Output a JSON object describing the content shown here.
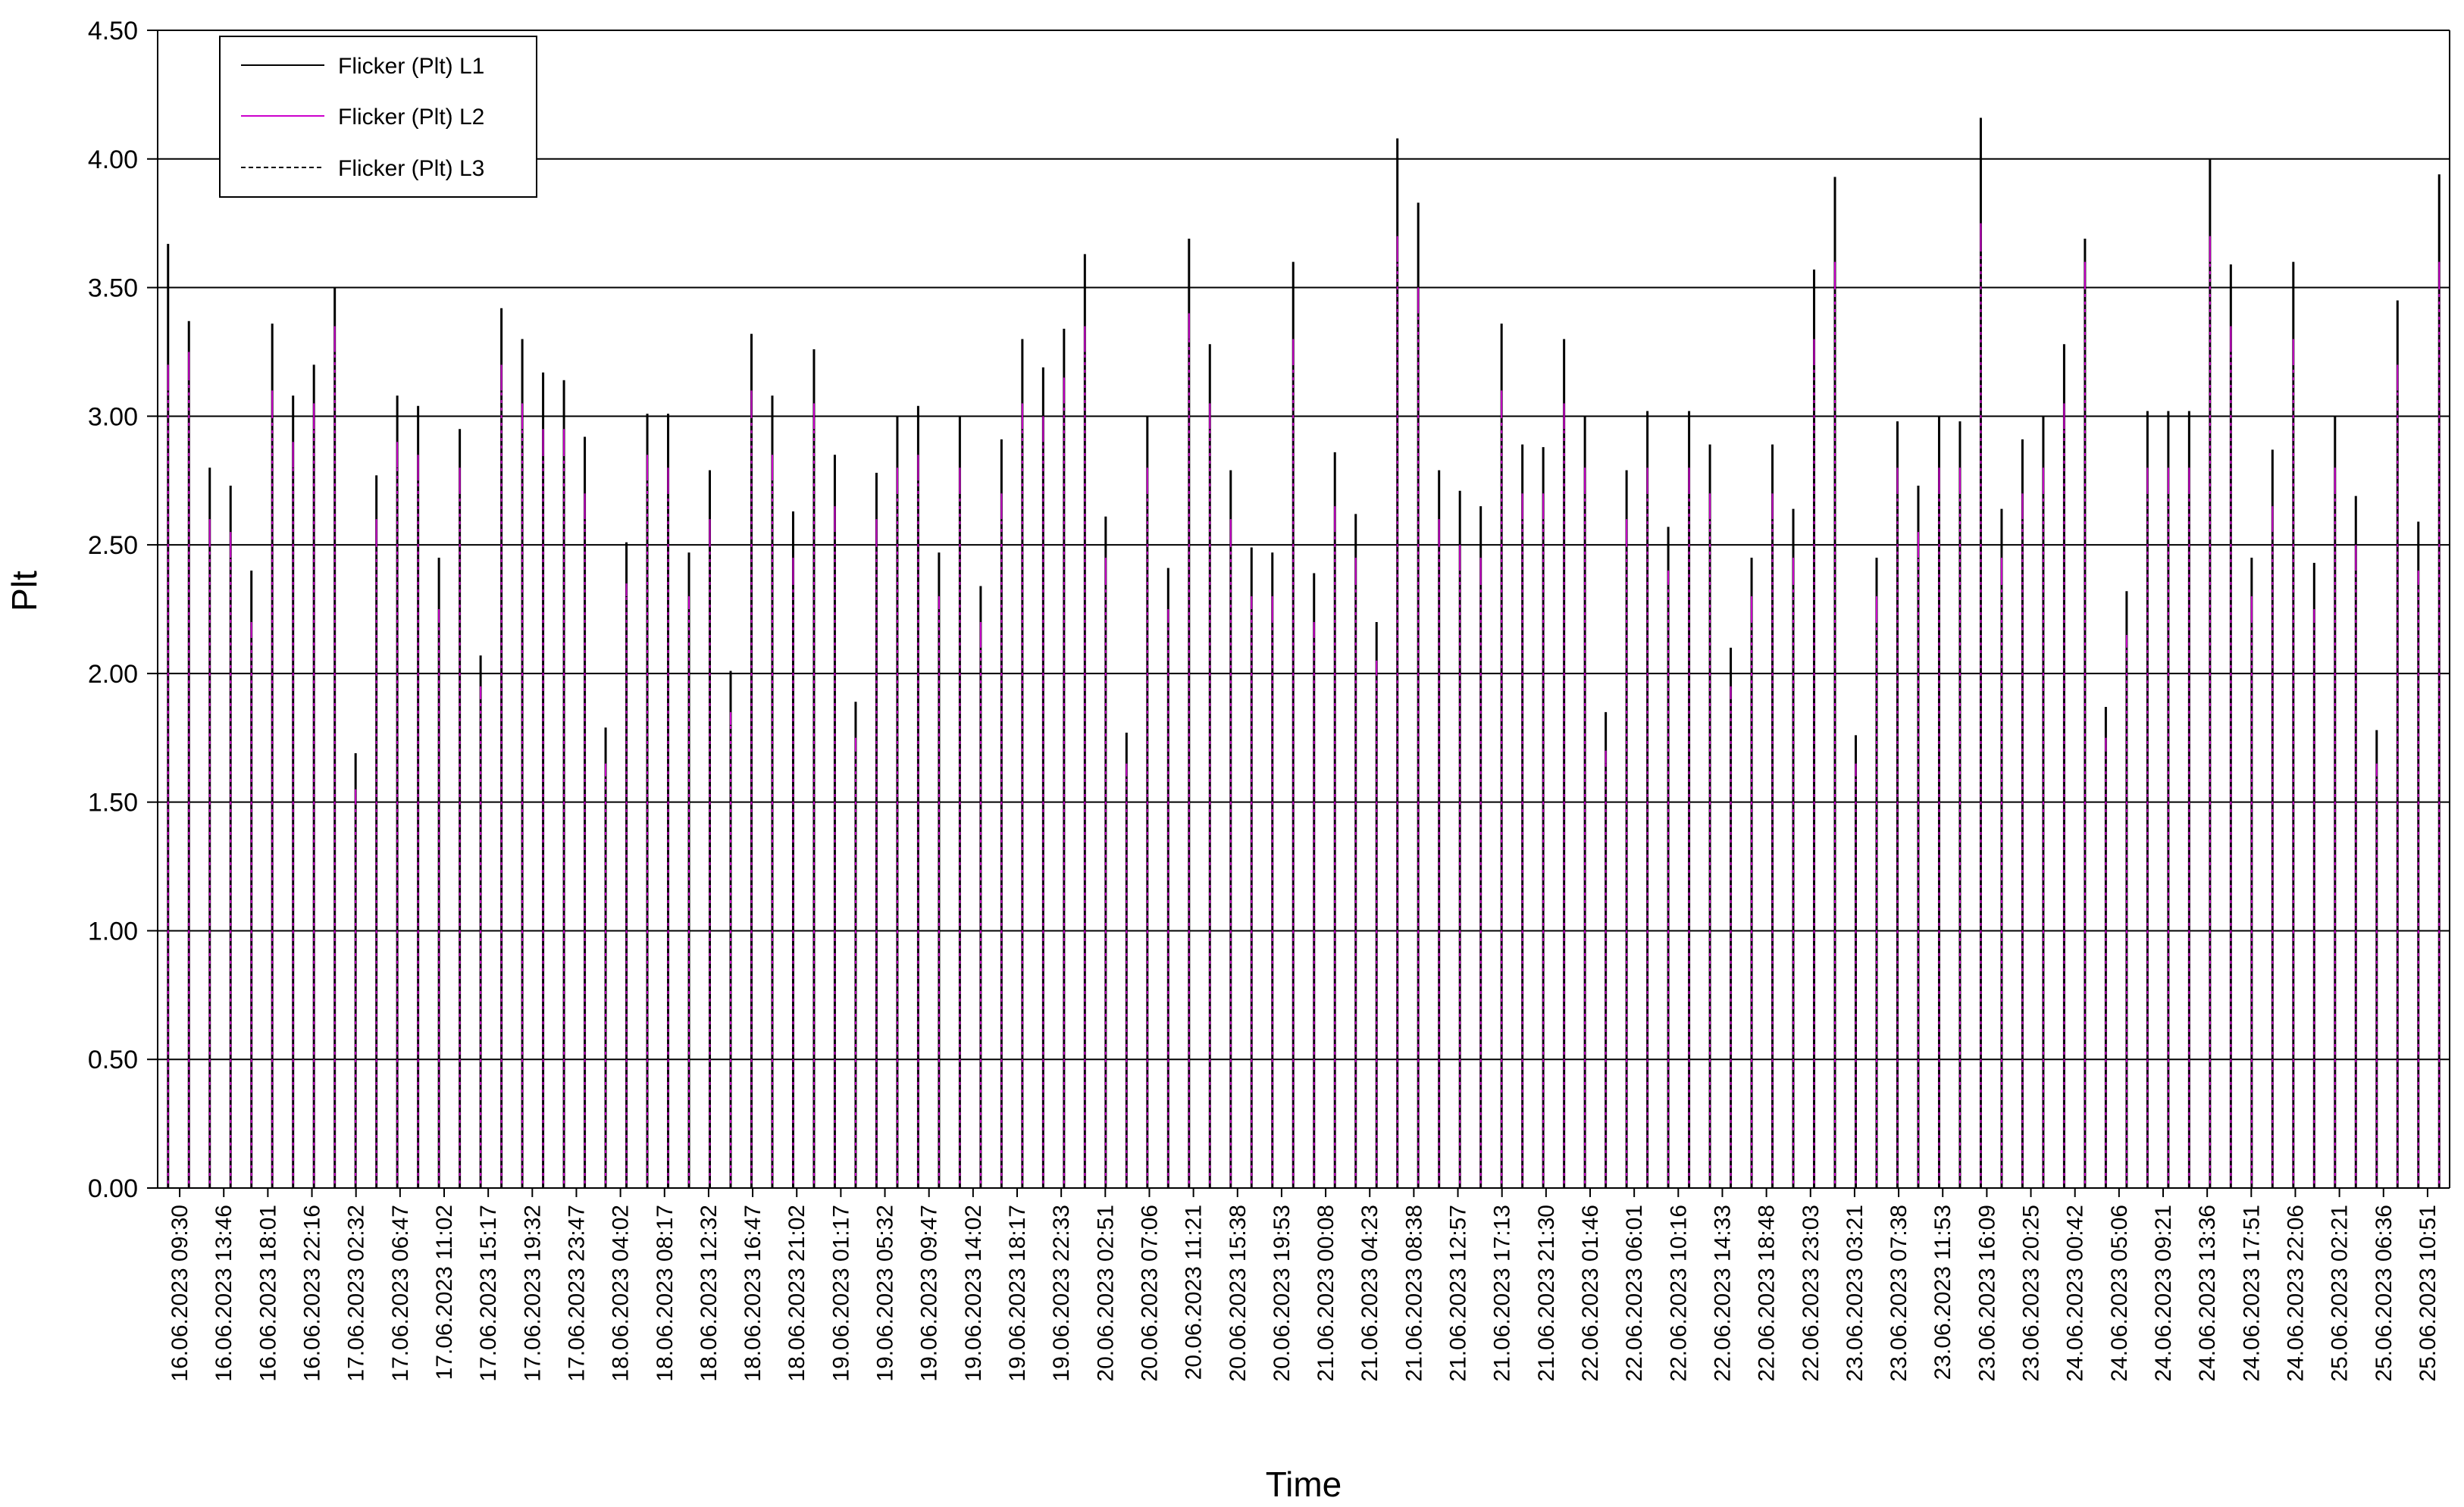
{
  "chart_data": {
    "type": "bar",
    "title": "",
    "xlabel": "Time",
    "ylabel": "Plt",
    "ylim": [
      0,
      4.5
    ],
    "yticks": [
      "0.00",
      "0.50",
      "1.00",
      "1.50",
      "2.00",
      "2.50",
      "3.00",
      "3.50",
      "4.00",
      "4.50"
    ],
    "legend_position": "top-left",
    "grid": true,
    "colors": {
      "L1": "#000000",
      "L2": "#cc00cc",
      "L3": "#000000",
      "grid": "#000000"
    },
    "x_tick_labels": [
      "16.06.2023 09:30",
      "16.06.2023 13:46",
      "16.06.2023 18:01",
      "16.06.2023 22:16",
      "17.06.2023 02:32",
      "17.06.2023 06:47",
      "17.06.2023 11:02",
      "17.06.2023 15:17",
      "17.06.2023 19:32",
      "17.06.2023 23:47",
      "18.06.2023 04:02",
      "18.06.2023 08:17",
      "18.06.2023 12:32",
      "18.06.2023 16:47",
      "18.06.2023 21:02",
      "19.06.2023 01:17",
      "19.06.2023 05:32",
      "19.06.2023 09:47",
      "19.06.2023 14:02",
      "19.06.2023 18:17",
      "19.06.2023 22:33",
      "20.06.2023 02:51",
      "20.06.2023 07:06",
      "20.06.2023 11:21",
      "20.06.2023 15:38",
      "20.06.2023 19:53",
      "21.06.2023 00:08",
      "21.06.2023 04:23",
      "21.06.2023 08:38",
      "21.06.2023 12:57",
      "21.06.2023 17:13",
      "21.06.2023 21:30",
      "22.06.2023 01:46",
      "22.06.2023 06:01",
      "22.06.2023 10:16",
      "22.06.2023 14:33",
      "22.06.2023 18:48",
      "22.06.2023 23:03",
      "23.06.2023 03:21",
      "23.06.2023 07:38",
      "23.06.2023 11:53",
      "23.06.2023 16:09",
      "23.06.2023 20:25",
      "24.06.2023 00:42",
      "24.06.2023 05:06",
      "24.06.2023 09:21",
      "24.06.2023 13:36",
      "24.06.2023 17:51",
      "24.06.2023 22:06",
      "25.06.2023 02:21",
      "25.06.2023 06:36",
      "25.06.2023 10:51"
    ],
    "series": [
      {
        "name": "Flicker (Plt) L1",
        "values": [
          3.67,
          3.37,
          2.8,
          2.73,
          2.4,
          3.36,
          3.08,
          3.2,
          3.5,
          1.69,
          2.77,
          3.08,
          3.04,
          2.45,
          2.95,
          2.07,
          3.42,
          3.3,
          3.17,
          3.14,
          2.92,
          1.79,
          2.51,
          3.01,
          3.01,
          2.47,
          2.79,
          2.01,
          3.32,
          3.08,
          2.63,
          3.26,
          2.85,
          1.89,
          2.78,
          3.0,
          3.04,
          2.47,
          3.0,
          2.34,
          2.91,
          3.3,
          3.19,
          3.34,
          3.63,
          2.61,
          1.77,
          3.0,
          2.41,
          3.69,
          3.28,
          2.79,
          2.49,
          2.47,
          3.6,
          2.39,
          2.86,
          2.62,
          2.2,
          4.08,
          3.83,
          2.79,
          2.71,
          2.65,
          3.36,
          2.89,
          2.88,
          3.3,
          3.0,
          1.85,
          2.79,
          3.02,
          2.57,
          3.02,
          2.89,
          2.1,
          2.45,
          2.89,
          2.64,
          3.57,
          3.93,
          1.76,
          2.45,
          2.98,
          2.73,
          3.0,
          2.98,
          4.16,
          2.64,
          2.91,
          3.0,
          3.28,
          3.69,
          1.87,
          2.32,
          3.02,
          3.02,
          3.02,
          4.0,
          3.59,
          2.45,
          2.87,
          3.6,
          2.43,
          3.0,
          2.69,
          1.78,
          3.45,
          2.59,
          3.94
        ]
      },
      {
        "name": "Flicker (Plt) L2",
        "values": [
          3.2,
          3.25,
          2.6,
          2.55,
          2.2,
          3.1,
          2.9,
          3.05,
          3.35,
          1.55,
          2.6,
          2.9,
          2.85,
          2.25,
          2.8,
          1.95,
          3.2,
          3.05,
          2.95,
          2.95,
          2.7,
          1.65,
          2.35,
          2.85,
          2.8,
          2.3,
          2.6,
          1.85,
          3.1,
          2.85,
          2.45,
          3.05,
          2.65,
          1.75,
          2.6,
          2.8,
          2.85,
          2.3,
          2.8,
          2.2,
          2.7,
          3.05,
          3.0,
          3.15,
          3.35,
          2.45,
          1.65,
          2.8,
          2.25,
          3.4,
          3.05,
          2.6,
          2.3,
          2.3,
          3.3,
          2.2,
          2.65,
          2.45,
          2.05,
          3.7,
          3.5,
          2.6,
          2.5,
          2.45,
          3.1,
          2.7,
          2.7,
          3.05,
          2.8,
          1.7,
          2.6,
          2.8,
          2.4,
          2.8,
          2.7,
          1.95,
          2.3,
          2.7,
          2.45,
          3.3,
          3.6,
          1.65,
          2.3,
          2.8,
          2.55,
          2.8,
          2.8,
          3.75,
          2.45,
          2.7,
          2.8,
          3.05,
          3.6,
          1.75,
          2.15,
          2.8,
          2.8,
          2.8,
          3.7,
          3.35,
          2.3,
          2.65,
          3.3,
          2.25,
          2.8,
          2.5,
          1.65,
          3.2,
          2.4,
          3.6
        ]
      },
      {
        "name": "Flicker (Plt) L3",
        "values": [
          3.1,
          3.15,
          2.5,
          2.45,
          2.15,
          3.0,
          2.8,
          2.95,
          3.25,
          1.5,
          2.5,
          2.8,
          2.75,
          2.2,
          2.7,
          1.9,
          3.1,
          2.95,
          2.85,
          2.85,
          2.6,
          1.6,
          2.3,
          2.75,
          2.7,
          2.25,
          2.5,
          1.8,
          3.0,
          2.75,
          2.35,
          2.95,
          2.55,
          1.7,
          2.5,
          2.7,
          2.75,
          2.25,
          2.7,
          2.1,
          2.6,
          2.95,
          2.9,
          3.05,
          3.25,
          2.35,
          1.6,
          2.7,
          2.2,
          3.3,
          2.95,
          2.5,
          2.25,
          2.2,
          3.2,
          2.15,
          2.55,
          2.35,
          2.0,
          3.6,
          3.4,
          2.5,
          2.4,
          2.35,
          3.0,
          2.6,
          2.6,
          2.95,
          2.7,
          1.65,
          2.5,
          2.7,
          2.35,
          2.7,
          2.6,
          1.9,
          2.2,
          2.6,
          2.35,
          3.2,
          3.5,
          1.6,
          2.2,
          2.7,
          2.45,
          2.7,
          2.7,
          3.65,
          2.35,
          2.6,
          2.7,
          2.95,
          3.5,
          1.7,
          2.1,
          2.7,
          2.7,
          2.7,
          3.6,
          3.25,
          2.2,
          2.55,
          3.2,
          2.2,
          2.7,
          2.4,
          1.6,
          3.1,
          2.35,
          3.5
        ]
      }
    ]
  }
}
